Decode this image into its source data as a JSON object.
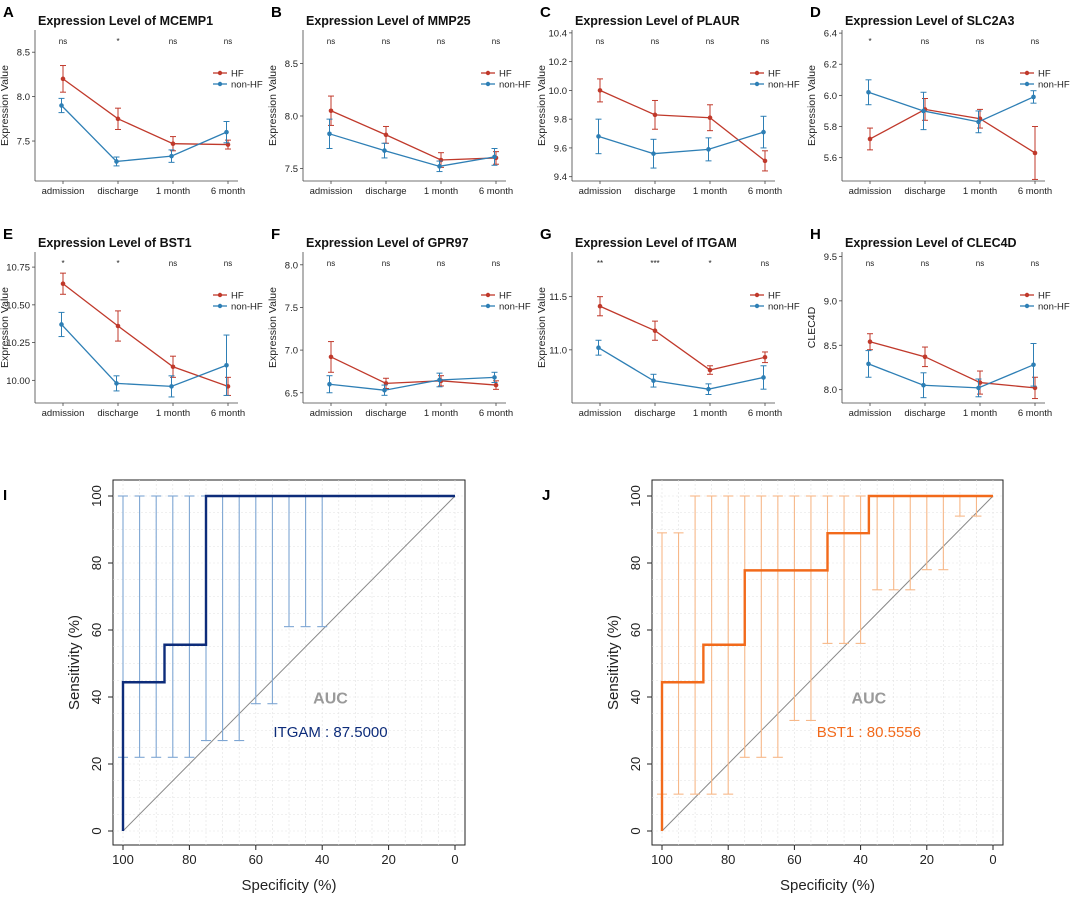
{
  "line_panels": [
    {
      "letter": "A",
      "title": "Expression Level of MCEMP1",
      "ylabel": "Expression Value",
      "sig": [
        "ns",
        "*",
        "ns",
        "ns"
      ],
      "chart_data": {
        "type": "line",
        "categories": [
          "admission",
          "discharge",
          "1 month",
          "6 month"
        ],
        "ylim": [
          7.05,
          8.75
        ],
        "yticks": [
          "7.5",
          "8.0",
          "8.5"
        ],
        "ytick_values": [
          7.5,
          8.0,
          8.5
        ],
        "series": [
          {
            "name": "HF",
            "color": "#c0392b",
            "values": [
              8.2,
              7.75,
              7.47,
              7.46
            ],
            "err": [
              0.15,
              0.12,
              0.08,
              0.05
            ]
          },
          {
            "name": "non-HF",
            "color": "#2e7fb5",
            "values": [
              7.9,
              7.27,
              7.33,
              7.6
            ],
            "err": [
              0.08,
              0.05,
              0.07,
              0.12
            ]
          }
        ]
      }
    },
    {
      "letter": "B",
      "title": "Expression Level of MMP25",
      "ylabel": "Expression Value",
      "sig": [
        "ns",
        "ns",
        "ns",
        "ns"
      ],
      "chart_data": {
        "type": "line",
        "categories": [
          "admission",
          "discharge",
          "1 month",
          "6 month"
        ],
        "ylim": [
          7.38,
          8.82
        ],
        "yticks": [
          "7.5",
          "8.0",
          "8.5"
        ],
        "ytick_values": [
          7.5,
          8.0,
          8.5
        ],
        "series": [
          {
            "name": "HF",
            "color": "#c0392b",
            "values": [
              8.05,
              7.82,
              7.58,
              7.6
            ],
            "err": [
              0.14,
              0.08,
              0.07,
              0.06
            ]
          },
          {
            "name": "non-HF",
            "color": "#2e7fb5",
            "values": [
              7.83,
              7.67,
              7.52,
              7.61
            ],
            "err": [
              0.14,
              0.07,
              0.05,
              0.08
            ]
          }
        ]
      }
    },
    {
      "letter": "C",
      "title": "Expression Level of PLAUR",
      "ylabel": "Expression Value",
      "sig": [
        "ns",
        "ns",
        "ns",
        "ns"
      ],
      "chart_data": {
        "type": "line",
        "categories": [
          "admission",
          "discharge",
          "1 month",
          "6 month"
        ],
        "ylim": [
          9.37,
          10.42
        ],
        "yticks": [
          "9.4",
          "9.6",
          "9.8",
          "10.0",
          "10.2",
          "10.4"
        ],
        "ytick_values": [
          9.4,
          9.6,
          9.8,
          10.0,
          10.2,
          10.4
        ],
        "series": [
          {
            "name": "HF",
            "color": "#c0392b",
            "values": [
              10.0,
              9.83,
              9.81,
              9.51
            ],
            "err": [
              0.08,
              0.1,
              0.09,
              0.07
            ]
          },
          {
            "name": "non-HF",
            "color": "#2e7fb5",
            "values": [
              9.68,
              9.56,
              9.59,
              9.71
            ],
            "err": [
              0.12,
              0.1,
              0.08,
              0.11
            ]
          }
        ]
      }
    },
    {
      "letter": "D",
      "title": "Expression Level of SLC2A3",
      "ylabel": "Expression Value",
      "sig": [
        "*",
        "ns",
        "ns",
        "ns"
      ],
      "chart_data": {
        "type": "line",
        "categories": [
          "admission",
          "discharge",
          "1 month",
          "6 month"
        ],
        "ylim": [
          5.45,
          6.42
        ],
        "yticks": [
          "5.6",
          "5.8",
          "6.0",
          "6.2",
          "6.4"
        ],
        "ytick_values": [
          5.6,
          5.8,
          6.0,
          6.2,
          6.4
        ],
        "series": [
          {
            "name": "HF",
            "color": "#c0392b",
            "values": [
              5.72,
              5.91,
              5.85,
              5.63
            ],
            "err": [
              0.07,
              0.07,
              0.06,
              0.17
            ]
          },
          {
            "name": "non-HF",
            "color": "#2e7fb5",
            "values": [
              6.02,
              5.9,
              5.83,
              5.99
            ],
            "err": [
              0.08,
              0.12,
              0.07,
              0.04
            ]
          }
        ]
      }
    },
    {
      "letter": "E",
      "title": "Expression Level of BST1",
      "ylabel": "Expression Value",
      "sig": [
        "*",
        "*",
        "ns",
        "ns"
      ],
      "chart_data": {
        "type": "line",
        "categories": [
          "admission",
          "discharge",
          "1 month",
          "6 month"
        ],
        "ylim": [
          9.85,
          10.85
        ],
        "yticks": [
          "10.00",
          "10.25",
          "10.50",
          "10.75"
        ],
        "ytick_values": [
          10.0,
          10.25,
          10.5,
          10.75
        ],
        "series": [
          {
            "name": "HF",
            "color": "#c0392b",
            "values": [
              10.64,
              10.36,
              10.09,
              9.96
            ],
            "err": [
              0.07,
              0.1,
              0.07,
              0.06
            ]
          },
          {
            "name": "non-HF",
            "color": "#2e7fb5",
            "values": [
              10.37,
              9.98,
              9.96,
              10.1
            ],
            "err": [
              0.08,
              0.05,
              0.07,
              0.2
            ]
          }
        ]
      }
    },
    {
      "letter": "F",
      "title": "Expression Level of GPR97",
      "ylabel": "Expression Value",
      "sig": [
        "ns",
        "ns",
        "ns",
        "ns"
      ],
      "chart_data": {
        "type": "line",
        "categories": [
          "admission",
          "discharge",
          "1 month",
          "6 month"
        ],
        "ylim": [
          6.38,
          8.15
        ],
        "yticks": [
          "6.5",
          "7.0",
          "7.5",
          "8.0"
        ],
        "ytick_values": [
          6.5,
          7.0,
          7.5,
          8.0
        ],
        "series": [
          {
            "name": "HF",
            "color": "#c0392b",
            "values": [
              6.92,
              6.61,
              6.64,
              6.59
            ],
            "err": [
              0.18,
              0.06,
              0.06,
              0.05
            ]
          },
          {
            "name": "non-HF",
            "color": "#2e7fb5",
            "values": [
              6.6,
              6.53,
              6.65,
              6.68
            ],
            "err": [
              0.1,
              0.06,
              0.08,
              0.06
            ]
          }
        ]
      }
    },
    {
      "letter": "G",
      "title": "Expression Level of ITGAM",
      "ylabel": "Expression Value",
      "sig": [
        "**",
        "***",
        "*",
        "ns"
      ],
      "chart_data": {
        "type": "line",
        "categories": [
          "admission",
          "discharge",
          "1 month",
          "6 month"
        ],
        "ylim": [
          10.5,
          11.92
        ],
        "yticks": [
          "11.0",
          "11.5"
        ],
        "ytick_values": [
          11.0,
          11.5
        ],
        "series": [
          {
            "name": "HF",
            "color": "#c0392b",
            "values": [
              11.41,
              11.18,
              10.81,
              10.93
            ],
            "err": [
              0.09,
              0.09,
              0.04,
              0.05
            ]
          },
          {
            "name": "non-HF",
            "color": "#2e7fb5",
            "values": [
              11.02,
              10.71,
              10.63,
              10.74
            ],
            "err": [
              0.07,
              0.06,
              0.05,
              0.11
            ]
          }
        ]
      }
    },
    {
      "letter": "H",
      "title": "Expression Level of CLEC4D",
      "ylabel": "CLEC4D",
      "sig": [
        "ns",
        "ns",
        "ns",
        "ns"
      ],
      "chart_data": {
        "type": "line",
        "categories": [
          "admission",
          "discharge",
          "1 month",
          "6 month"
        ],
        "ylim": [
          7.85,
          9.55
        ],
        "yticks": [
          "8.0",
          "8.5",
          "9.0",
          "9.5"
        ],
        "ytick_values": [
          8.0,
          8.5,
          9.0,
          9.5
        ],
        "series": [
          {
            "name": "HF",
            "color": "#c0392b",
            "values": [
              8.54,
              8.37,
              8.08,
              8.02
            ],
            "err": [
              0.09,
              0.11,
              0.13,
              0.12
            ]
          },
          {
            "name": "non-HF",
            "color": "#2e7fb5",
            "values": [
              8.29,
              8.05,
              8.02,
              8.28
            ],
            "err": [
              0.15,
              0.14,
              0.1,
              0.24
            ]
          }
        ]
      }
    }
  ],
  "roc_panels": [
    {
      "letter": "I",
      "xlabel": "Specificity (%)",
      "ylabel": "Sensitivity (%)",
      "auc_label": "AUC",
      "auc_text": "ITGAM : 87.5000",
      "color": "#0d2c7a",
      "ci_color": "#7ea6d3",
      "chart_data": {
        "type": "line",
        "xlim": [
          100,
          0
        ],
        "ylim": [
          0,
          100
        ],
        "xticks": [
          "100",
          "80",
          "60",
          "40",
          "20",
          "0"
        ],
        "xtick_values": [
          100,
          80,
          60,
          40,
          20,
          0
        ],
        "yticks": [
          "0",
          "20",
          "40",
          "60",
          "80",
          "100"
        ],
        "ytick_values": [
          0,
          20,
          40,
          60,
          80,
          100
        ],
        "roc_x": [
          100,
          100,
          87.5,
          87.5,
          75,
          75,
          0
        ],
        "roc_y": [
          0,
          44.4,
          44.4,
          55.6,
          55.6,
          100,
          100
        ],
        "ci": [
          [
            100,
            22,
            100
          ],
          [
            95,
            22,
            100
          ],
          [
            90,
            22,
            100
          ],
          [
            85,
            22,
            100
          ],
          [
            80,
            22,
            100
          ],
          [
            75,
            27,
            100
          ],
          [
            70,
            27,
            100
          ],
          [
            65,
            27,
            100
          ],
          [
            60,
            38,
            100
          ],
          [
            55,
            38,
            100
          ],
          [
            50,
            61,
            100
          ],
          [
            45,
            61,
            100
          ],
          [
            40,
            61,
            100
          ]
        ]
      }
    },
    {
      "letter": "J",
      "xlabel": "Specificity (%)",
      "ylabel": "Sensitivity (%)",
      "auc_label": "AUC",
      "auc_text": "BST1 : 80.5556",
      "color": "#f26a1b",
      "ci_color": "#f7b889",
      "chart_data": {
        "type": "line",
        "xlim": [
          100,
          0
        ],
        "ylim": [
          0,
          100
        ],
        "xticks": [
          "100",
          "80",
          "60",
          "40",
          "20",
          "0"
        ],
        "xtick_values": [
          100,
          80,
          60,
          40,
          20,
          0
        ],
        "yticks": [
          "0",
          "20",
          "40",
          "60",
          "80",
          "100"
        ],
        "ytick_values": [
          0,
          20,
          40,
          60,
          80,
          100
        ],
        "roc_x": [
          100,
          100,
          87.5,
          87.5,
          75,
          75,
          50,
          50,
          37.5,
          37.5,
          0
        ],
        "roc_y": [
          0,
          44.4,
          44.4,
          55.6,
          55.6,
          77.8,
          77.8,
          88.9,
          88.9,
          100,
          100
        ],
        "ci": [
          [
            100,
            11,
            89
          ],
          [
            95,
            11,
            89
          ],
          [
            90,
            11,
            100
          ],
          [
            85,
            11,
            100
          ],
          [
            80,
            11,
            100
          ],
          [
            75,
            22,
            100
          ],
          [
            70,
            22,
            100
          ],
          [
            65,
            22,
            100
          ],
          [
            60,
            33,
            100
          ],
          [
            55,
            33,
            100
          ],
          [
            50,
            56,
            100
          ],
          [
            45,
            56,
            100
          ],
          [
            40,
            56,
            100
          ],
          [
            35,
            72,
            100
          ],
          [
            30,
            72,
            100
          ],
          [
            25,
            72,
            100
          ],
          [
            20,
            78,
            100
          ],
          [
            15,
            78,
            100
          ],
          [
            10,
            94,
            100
          ],
          [
            5,
            94,
            100
          ]
        ]
      }
    }
  ]
}
